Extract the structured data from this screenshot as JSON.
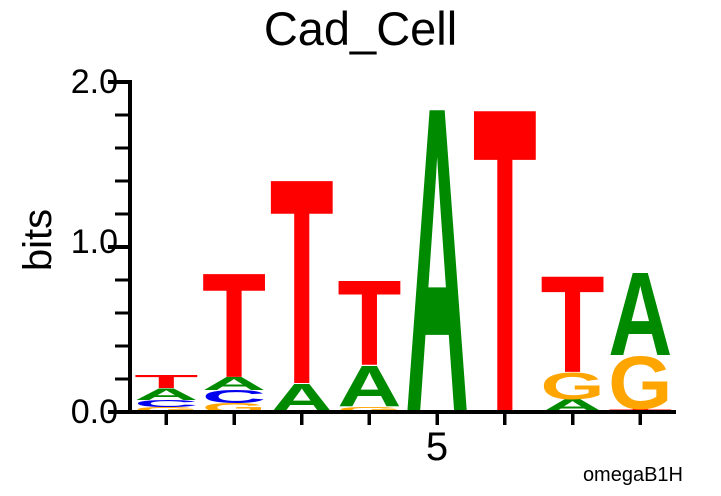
{
  "figure": {
    "title": "Cad_Cell",
    "ylabel": "bits",
    "credit": "omegaB1H",
    "ytick_labels": {
      "top": "2.0",
      "mid": "1.0",
      "bottom": "0.0"
    },
    "xtick_label": "5"
  },
  "chart_data": {
    "type": "sequence-logo",
    "title": "Cad_Cell",
    "ylabel": "bits",
    "attribution": "omegaB1H",
    "ylim": [
      0.0,
      2.0
    ],
    "units": "bits",
    "ytick_major": [
      2.0,
      1.0,
      0.0
    ],
    "ytick_labels": [
      "2.0",
      "1.0",
      "0.0"
    ],
    "ytick_minor_step": 0.2,
    "num_positions": 8,
    "x_tick_labeled": {
      "position": 5,
      "label": "5"
    },
    "legend": "none",
    "grid": "off",
    "base_colors": {
      "A": "#008A00",
      "C": "#0000EE",
      "G": "#FFA500",
      "T": "#FF0000"
    },
    "consensus": "TTTTATTA",
    "positions": [
      {
        "position": 1,
        "stack": [
          {
            "base": "G",
            "bits": 0.03
          },
          {
            "base": "C",
            "bits": 0.042
          },
          {
            "base": "A",
            "bits": 0.073
          },
          {
            "base": "T",
            "bits": 0.079
          }
        ]
      },
      {
        "position": 2,
        "stack": [
          {
            "base": "G",
            "bits": 0.055
          },
          {
            "base": "C",
            "bits": 0.079
          },
          {
            "base": "A",
            "bits": 0.079
          },
          {
            "base": "T",
            "bits": 0.648
          }
        ]
      },
      {
        "position": 3,
        "stack": [
          {
            "base": "A",
            "bits": 0.176
          },
          {
            "base": "T",
            "bits": 1.273
          }
        ]
      },
      {
        "position": 4,
        "stack": [
          {
            "base": "G",
            "bits": 0.033
          },
          {
            "base": "A",
            "bits": 0.255
          },
          {
            "base": "T",
            "bits": 0.527
          }
        ]
      },
      {
        "position": 5,
        "stack": [
          {
            "base": "A",
            "bits": 1.903
          }
        ]
      },
      {
        "position": 6,
        "stack": [
          {
            "base": "T",
            "bits": 1.897
          }
        ]
      },
      {
        "position": 7,
        "stack": [
          {
            "base": "A",
            "bits": 0.079
          },
          {
            "base": "G",
            "bits": 0.164
          },
          {
            "base": "T",
            "bits": 0.6
          }
        ]
      },
      {
        "position": 8,
        "stack": [
          {
            "base": "T",
            "bits": 0.018
          },
          {
            "base": "G",
            "bits": 0.327
          },
          {
            "base": "A",
            "bits": 0.515
          }
        ]
      }
    ]
  }
}
